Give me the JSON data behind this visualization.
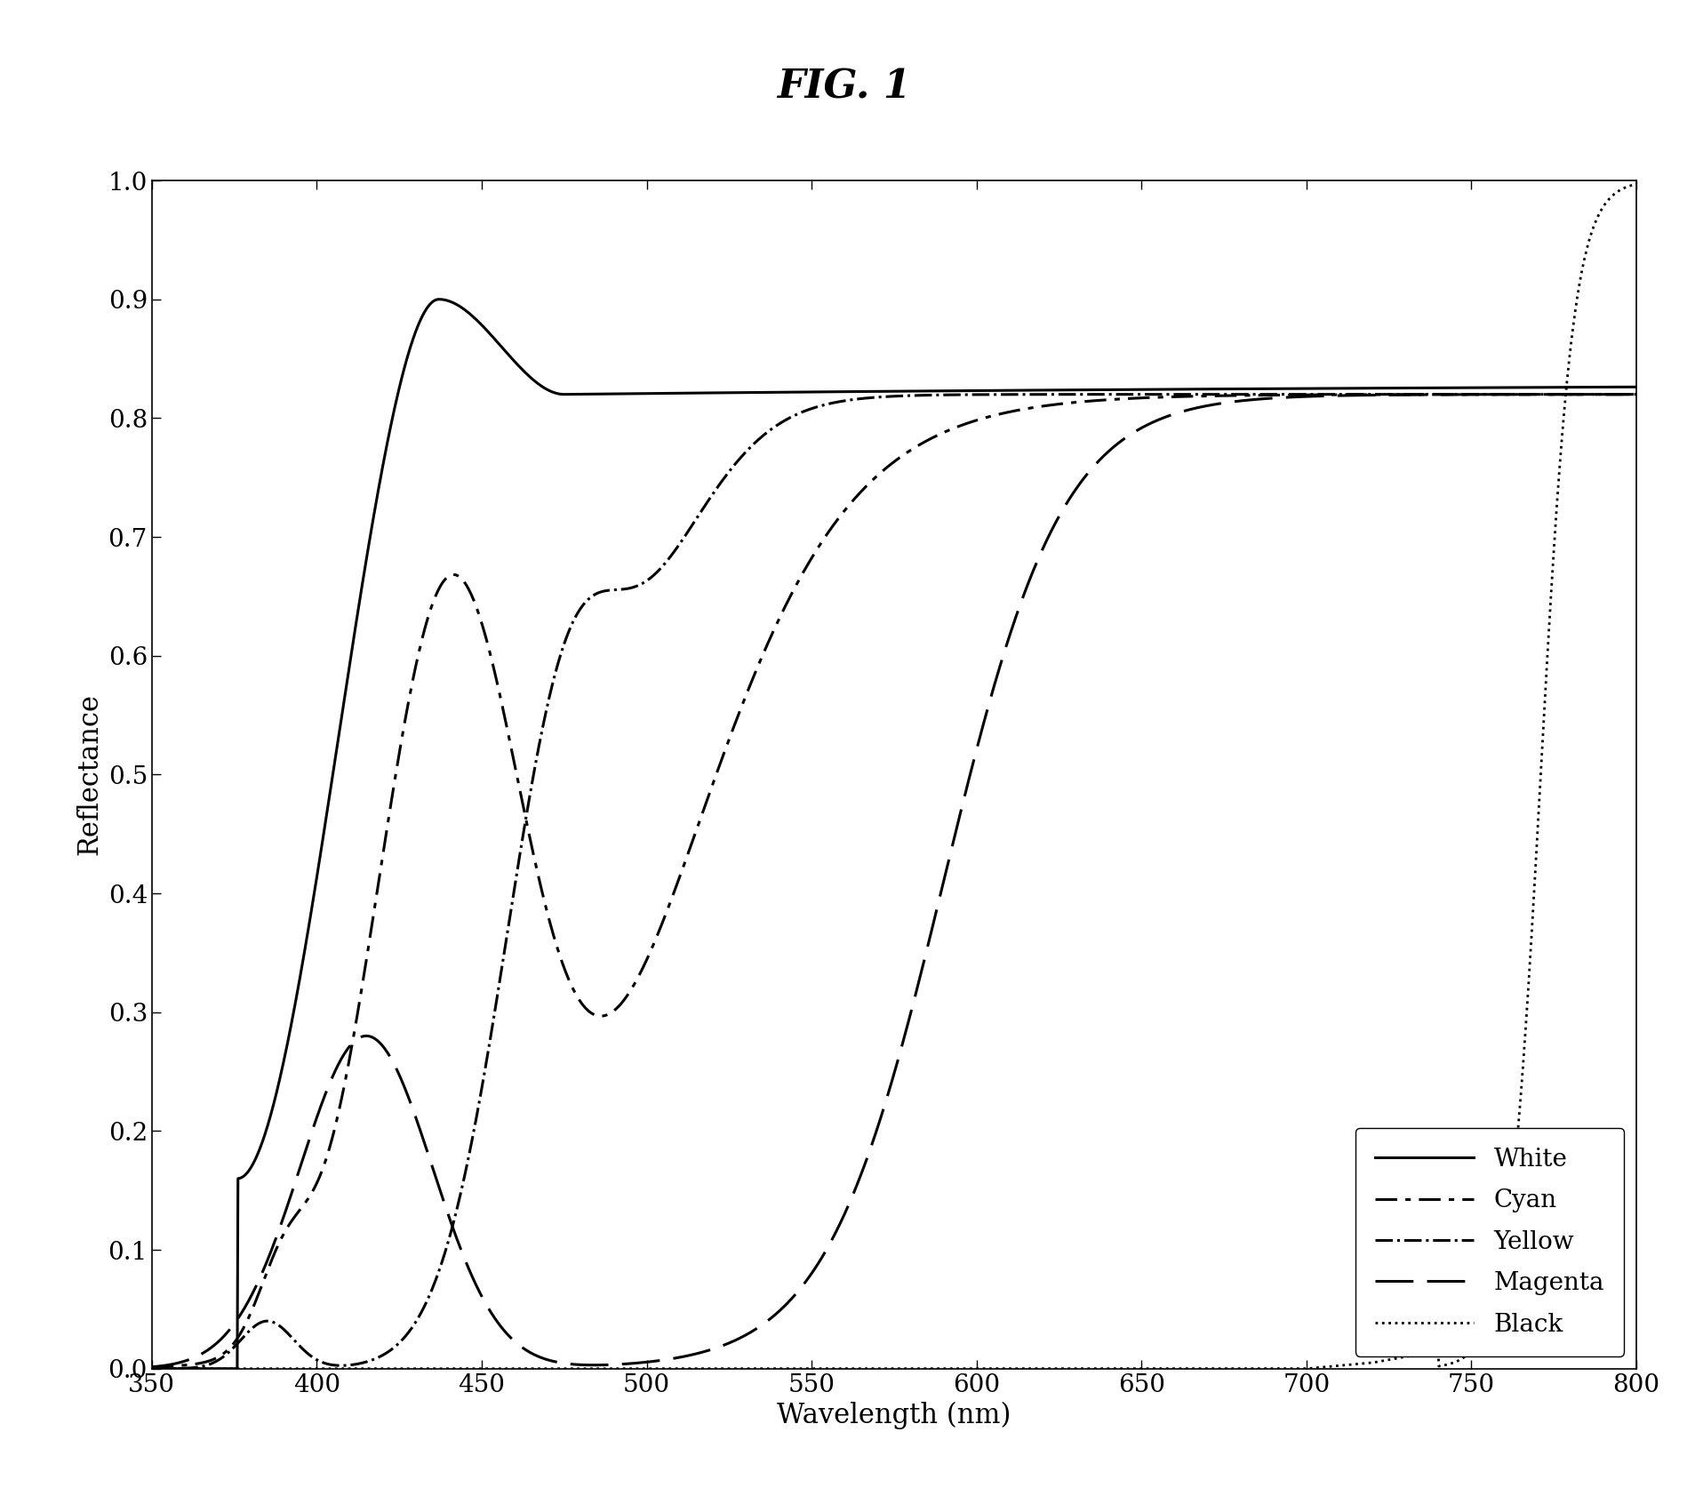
{
  "title": "FIG. 1",
  "xlabel": "Wavelength (nm)",
  "ylabel": "Reflectance",
  "xlim": [
    350,
    800
  ],
  "ylim": [
    0,
    1.0
  ],
  "xticks": [
    350,
    400,
    450,
    500,
    550,
    600,
    650,
    700,
    750,
    800
  ],
  "yticks": [
    0.0,
    0.1,
    0.2,
    0.3,
    0.4,
    0.5,
    0.6,
    0.7,
    0.8,
    0.9,
    1.0
  ],
  "background_color": "#ffffff",
  "title_fontsize": 32,
  "label_fontsize": 22,
  "tick_fontsize": 20,
  "legend_fontsize": 20
}
